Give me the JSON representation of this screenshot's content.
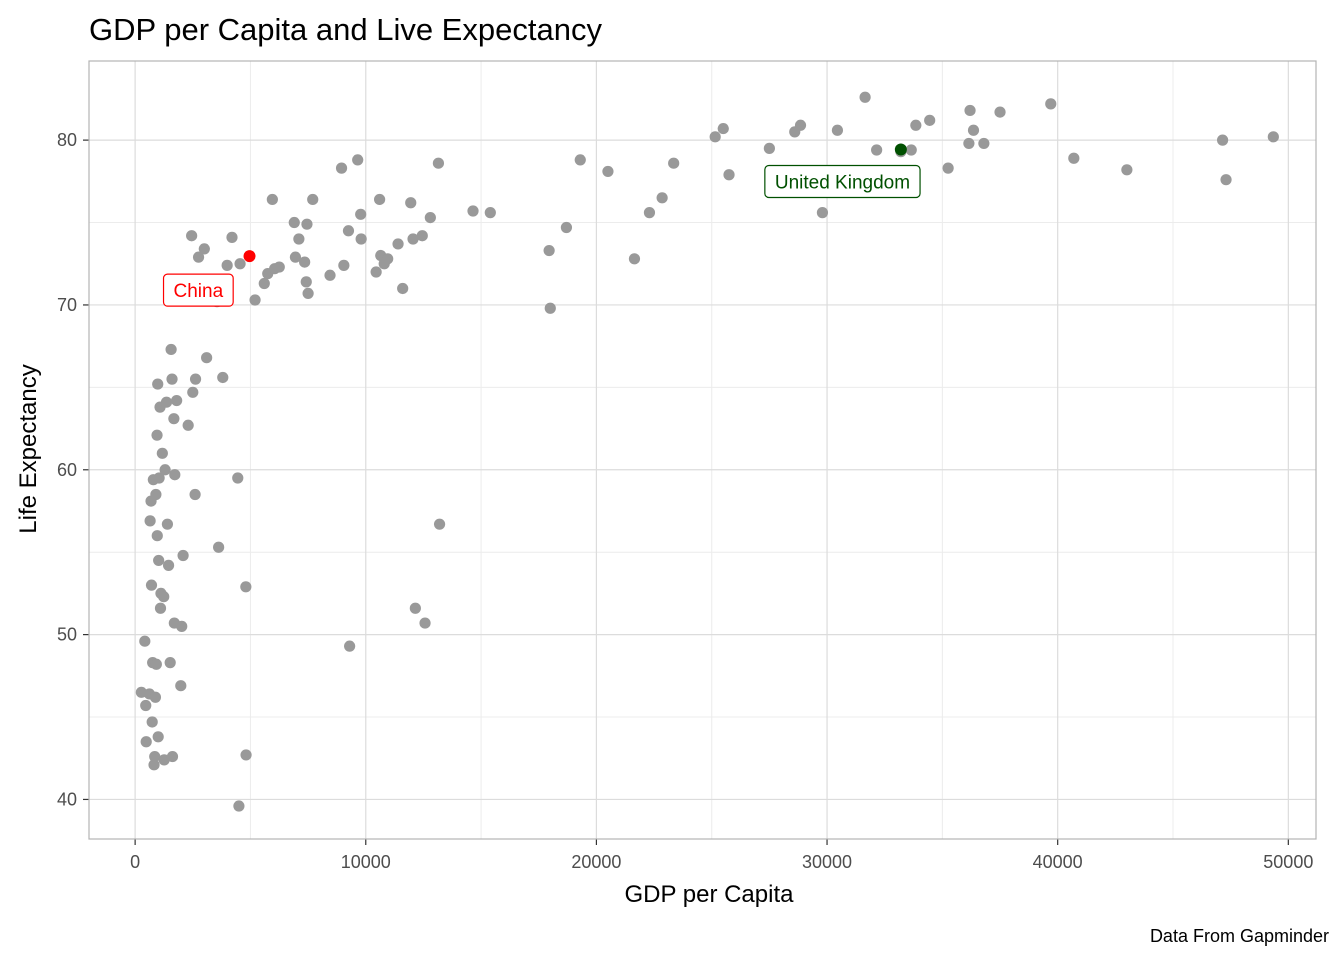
{
  "chart_data": {
    "type": "scatter",
    "title": "GDP per Capita and Live Expectancy",
    "xlabel": "GDP per Capita",
    "ylabel": "Life Expectancy",
    "caption": "Data From Gapminder",
    "xlim": [
      -2000,
      51200
    ],
    "ylim": [
      37.6,
      84.8
    ],
    "xticks": [
      0,
      10000,
      20000,
      30000,
      40000,
      50000
    ],
    "xtick_labels": [
      "0",
      "10000",
      "20000",
      "30000",
      "40000",
      "50000"
    ],
    "yticks": [
      40,
      50,
      60,
      70,
      80
    ],
    "ytick_labels": [
      "40",
      "50",
      "60",
      "70",
      "80"
    ],
    "grid": true,
    "legend": "none",
    "colors": {
      "points": "#999999",
      "highlight_china": "#ff0000",
      "highlight_uk": "#005000",
      "grid_major": "#dcdcdc",
      "grid_minor": "#ececec",
      "panel_border": "#b3b3b3"
    },
    "points": [
      [
        270,
        46.5
      ],
      [
        420,
        49.6
      ],
      [
        460,
        45.7
      ],
      [
        480,
        43.5
      ],
      [
        620,
        46.4
      ],
      [
        650,
        56.9
      ],
      [
        690,
        58.1
      ],
      [
        710,
        53.0
      ],
      [
        740,
        44.7
      ],
      [
        760,
        48.3
      ],
      [
        790,
        59.4
      ],
      [
        820,
        42.1
      ],
      [
        850,
        42.6
      ],
      [
        880,
        46.2
      ],
      [
        900,
        58.5
      ],
      [
        920,
        48.2
      ],
      [
        950,
        62.1
      ],
      [
        960,
        56.0
      ],
      [
        980,
        65.2
      ],
      [
        1000,
        43.8
      ],
      [
        1020,
        54.5
      ],
      [
        1040,
        59.5
      ],
      [
        1080,
        63.8
      ],
      [
        1100,
        51.6
      ],
      [
        1120,
        52.5
      ],
      [
        1180,
        61.0
      ],
      [
        1240,
        52.3
      ],
      [
        1260,
        42.4
      ],
      [
        1300,
        60.0
      ],
      [
        1360,
        64.1
      ],
      [
        1400,
        56.7
      ],
      [
        1450,
        54.2
      ],
      [
        1520,
        48.3
      ],
      [
        1560,
        67.3
      ],
      [
        1600,
        65.5
      ],
      [
        1620,
        42.6
      ],
      [
        1680,
        63.1
      ],
      [
        1700,
        50.7
      ],
      [
        1720,
        59.7
      ],
      [
        1800,
        64.2
      ],
      [
        1980,
        46.9
      ],
      [
        2020,
        50.5
      ],
      [
        2080,
        54.8
      ],
      [
        2300,
        62.7
      ],
      [
        2450,
        74.2
      ],
      [
        2500,
        64.7
      ],
      [
        2600,
        58.5
      ],
      [
        2620,
        65.5
      ],
      [
        2750,
        72.9
      ],
      [
        3000,
        73.4
      ],
      [
        3100,
        66.8
      ],
      [
        3550,
        70.2
      ],
      [
        3620,
        55.3
      ],
      [
        3800,
        65.6
      ],
      [
        3990,
        72.4
      ],
      [
        4200,
        74.1
      ],
      [
        4450,
        59.5
      ],
      [
        4500,
        39.6
      ],
      [
        4550,
        72.5
      ],
      [
        4800,
        52.9
      ],
      [
        4810,
        42.7
      ],
      [
        5200,
        70.3
      ],
      [
        5600,
        71.3
      ],
      [
        5750,
        71.9
      ],
      [
        5950,
        76.4
      ],
      [
        6050,
        72.2
      ],
      [
        6250,
        72.3
      ],
      [
        6900,
        75.0
      ],
      [
        6950,
        72.9
      ],
      [
        7100,
        74.0
      ],
      [
        7350,
        72.6
      ],
      [
        7420,
        71.4
      ],
      [
        7450,
        74.9
      ],
      [
        7500,
        70.7
      ],
      [
        7700,
        76.4
      ],
      [
        8450,
        71.8
      ],
      [
        8950,
        78.3
      ],
      [
        9050,
        72.4
      ],
      [
        9250,
        74.5
      ],
      [
        9300,
        49.3
      ],
      [
        9650,
        78.8
      ],
      [
        9780,
        75.5
      ],
      [
        9800,
        74.0
      ],
      [
        10450,
        72.0
      ],
      [
        10600,
        76.4
      ],
      [
        10650,
        73.0
      ],
      [
        10800,
        72.5
      ],
      [
        10950,
        72.8
      ],
      [
        11400,
        73.7
      ],
      [
        11600,
        71.0
      ],
      [
        11950,
        76.2
      ],
      [
        12050,
        74.0
      ],
      [
        12150,
        51.6
      ],
      [
        12450,
        74.2
      ],
      [
        12570,
        50.7
      ],
      [
        12800,
        75.3
      ],
      [
        13150,
        78.6
      ],
      [
        13200,
        56.7
      ],
      [
        14650,
        75.7
      ],
      [
        15400,
        75.6
      ],
      [
        17950,
        73.3
      ],
      [
        18000,
        69.8
      ],
      [
        18700,
        74.7
      ],
      [
        19300,
        78.8
      ],
      [
        20500,
        78.1
      ],
      [
        21650,
        72.8
      ],
      [
        22300,
        75.6
      ],
      [
        22850,
        76.5
      ],
      [
        23350,
        78.6
      ],
      [
        25150,
        80.2
      ],
      [
        25500,
        80.7
      ],
      [
        25750,
        77.9
      ],
      [
        27500,
        79.5
      ],
      [
        28600,
        80.5
      ],
      [
        28850,
        80.9
      ],
      [
        29800,
        75.6
      ],
      [
        30450,
        80.6
      ],
      [
        31650,
        82.6
      ],
      [
        32150,
        79.4
      ],
      [
        33200,
        79.3
      ],
      [
        33650,
        79.4
      ],
      [
        33850,
        80.9
      ],
      [
        34450,
        81.2
      ],
      [
        35250,
        78.3
      ],
      [
        36150,
        79.8
      ],
      [
        36200,
        81.8
      ],
      [
        36350,
        80.6
      ],
      [
        36800,
        79.8
      ],
      [
        37500,
        81.7
      ],
      [
        39700,
        82.2
      ],
      [
        40700,
        78.9
      ],
      [
        43000,
        78.2
      ],
      [
        47150,
        80.0
      ],
      [
        47300,
        77.6
      ],
      [
        49350,
        80.2
      ]
    ],
    "highlights": [
      {
        "label": "China",
        "x": 4960,
        "y": 72.96,
        "color": "#ff0000"
      },
      {
        "label": "United Kingdom",
        "x": 33200,
        "y": 79.43,
        "color": "#005000"
      }
    ]
  }
}
